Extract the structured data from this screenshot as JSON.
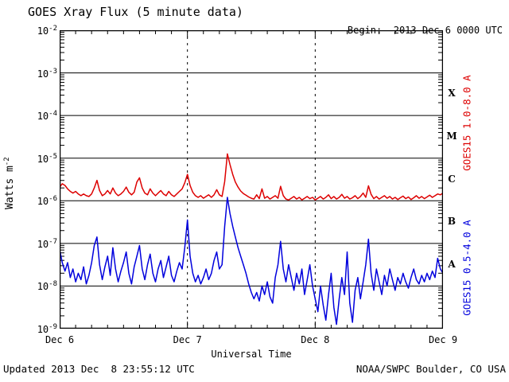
{
  "header": {
    "title": "GOES Xray Flux (5 minute data)",
    "begin_label": "Begin:",
    "begin_value": "2013 Dec 6 0000 UTC"
  },
  "footer": {
    "updated": "Updated 2013 Dec  8 23:55:12 UTC",
    "source": "NOAA/SWPC Boulder, CO USA"
  },
  "axes": {
    "ylabel_base": "Watts m",
    "ylabel_exponent": "-2",
    "xlabel": "Universal Time"
  },
  "chart_data": {
    "type": "line",
    "title": "GOES Xray Flux (5 minute data)",
    "xlabel": "Universal Time",
    "ylabel": "Watts m^-2",
    "y_scale": "log10",
    "y_range_exponents": [
      -9,
      -2
    ],
    "y_tick_exponents": [
      "-2",
      "-3",
      "-4",
      "-5",
      "-6",
      "-7",
      "-8",
      "-9"
    ],
    "x_range_days": [
      0,
      3
    ],
    "x_start": "2013 Dec 6 0000 UTC",
    "x_ticks": [
      {
        "day": 0,
        "label": "Dec 6"
      },
      {
        "day": 1,
        "label": "Dec 7"
      },
      {
        "day": 2,
        "label": "Dec 8"
      },
      {
        "day": 3,
        "label": "Dec 9"
      }
    ],
    "minor_time_tick_days": 0.125,
    "grid": {
      "horizontal_decade_lines": true,
      "vertical_dashed_at_days": [
        1,
        2
      ]
    },
    "flare_classes": [
      {
        "label": "X",
        "mid_exponent": -3.5
      },
      {
        "label": "M",
        "mid_exponent": -4.5
      },
      {
        "label": "C",
        "mid_exponent": -5.5
      },
      {
        "label": "B",
        "mid_exponent": -6.5
      },
      {
        "label": "A",
        "mid_exponent": -7.5
      }
    ],
    "sample_interval_days": 0.0208333,
    "series": [
      {
        "name": "GOES15 1.0-8.0 A",
        "color": "#dd0000",
        "log10_values": [
          -5.68,
          -5.6,
          -5.64,
          -5.72,
          -5.78,
          -5.82,
          -5.78,
          -5.84,
          -5.88,
          -5.84,
          -5.88,
          -5.9,
          -5.84,
          -5.7,
          -5.52,
          -5.76,
          -5.88,
          -5.84,
          -5.76,
          -5.84,
          -5.7,
          -5.82,
          -5.88,
          -5.84,
          -5.78,
          -5.68,
          -5.8,
          -5.86,
          -5.8,
          -5.56,
          -5.46,
          -5.7,
          -5.82,
          -5.86,
          -5.72,
          -5.82,
          -5.88,
          -5.82,
          -5.76,
          -5.84,
          -5.88,
          -5.78,
          -5.86,
          -5.9,
          -5.84,
          -5.78,
          -5.72,
          -5.58,
          -5.38,
          -5.64,
          -5.8,
          -5.88,
          -5.92,
          -5.88,
          -5.94,
          -5.9,
          -5.86,
          -5.92,
          -5.86,
          -5.74,
          -5.86,
          -5.9,
          -5.55,
          -4.9,
          -5.15,
          -5.38,
          -5.56,
          -5.68,
          -5.77,
          -5.83,
          -5.87,
          -5.91,
          -5.94,
          -5.96,
          -5.86,
          -5.95,
          -5.72,
          -5.94,
          -5.9,
          -5.96,
          -5.92,
          -5.88,
          -5.94,
          -5.66,
          -5.88,
          -5.96,
          -5.98,
          -5.94,
          -5.9,
          -5.96,
          -5.92,
          -5.98,
          -5.94,
          -5.9,
          -5.95,
          -5.92,
          -5.98,
          -5.94,
          -5.9,
          -5.96,
          -5.92,
          -5.86,
          -5.95,
          -5.9,
          -5.96,
          -5.92,
          -5.85,
          -5.94,
          -5.9,
          -5.96,
          -5.93,
          -5.88,
          -5.95,
          -5.9,
          -5.82,
          -5.92,
          -5.65,
          -5.85,
          -5.95,
          -5.9,
          -5.96,
          -5.92,
          -5.88,
          -5.94,
          -5.9,
          -5.96,
          -5.92,
          -5.97,
          -5.93,
          -5.89,
          -5.95,
          -5.91,
          -5.97,
          -5.93,
          -5.88,
          -5.94,
          -5.9,
          -5.95,
          -5.91,
          -5.87,
          -5.92,
          -5.88,
          -5.84,
          -5.86,
          -5.82
        ]
      },
      {
        "name": "GOES15 0.5-4.0 A",
        "color": "#0000dd",
        "log10_values": [
          -7.15,
          -7.45,
          -7.65,
          -7.45,
          -7.8,
          -7.6,
          -7.9,
          -7.7,
          -7.85,
          -7.55,
          -7.95,
          -7.75,
          -7.45,
          -7.05,
          -6.85,
          -7.5,
          -7.85,
          -7.55,
          -7.3,
          -7.75,
          -7.1,
          -7.6,
          -7.9,
          -7.65,
          -7.45,
          -7.2,
          -7.7,
          -7.95,
          -7.55,
          -7.3,
          -7.05,
          -7.6,
          -7.85,
          -7.5,
          -7.25,
          -7.7,
          -7.9,
          -7.6,
          -7.4,
          -7.8,
          -7.55,
          -7.3,
          -7.75,
          -7.9,
          -7.65,
          -7.45,
          -7.6,
          -7.1,
          -6.45,
          -7.3,
          -7.7,
          -7.9,
          -7.75,
          -7.95,
          -7.8,
          -7.6,
          -7.85,
          -7.7,
          -7.4,
          -7.2,
          -7.6,
          -7.5,
          -6.6,
          -5.92,
          -6.3,
          -6.6,
          -6.85,
          -7.1,
          -7.3,
          -7.5,
          -7.7,
          -7.95,
          -8.15,
          -8.3,
          -8.15,
          -8.35,
          -8.0,
          -8.2,
          -7.9,
          -8.25,
          -8.4,
          -7.8,
          -7.5,
          -6.95,
          -7.6,
          -7.9,
          -7.5,
          -7.8,
          -8.1,
          -7.7,
          -7.95,
          -7.6,
          -8.2,
          -7.85,
          -7.5,
          -8.0,
          -8.3,
          -8.6,
          -8.0,
          -8.45,
          -8.8,
          -8.2,
          -7.7,
          -8.5,
          -8.9,
          -8.3,
          -7.8,
          -8.2,
          -7.2,
          -8.4,
          -8.85,
          -8.1,
          -7.8,
          -8.3,
          -7.9,
          -7.5,
          -6.9,
          -7.7,
          -8.1,
          -7.6,
          -7.9,
          -8.2,
          -7.75,
          -8.0,
          -7.6,
          -7.85,
          -8.1,
          -7.8,
          -7.95,
          -7.7,
          -7.9,
          -8.05,
          -7.8,
          -7.6,
          -7.85,
          -7.95,
          -7.75,
          -7.9,
          -7.7,
          -7.85,
          -7.65,
          -7.8,
          -7.35,
          -7.6,
          -7.7
        ]
      }
    ]
  }
}
